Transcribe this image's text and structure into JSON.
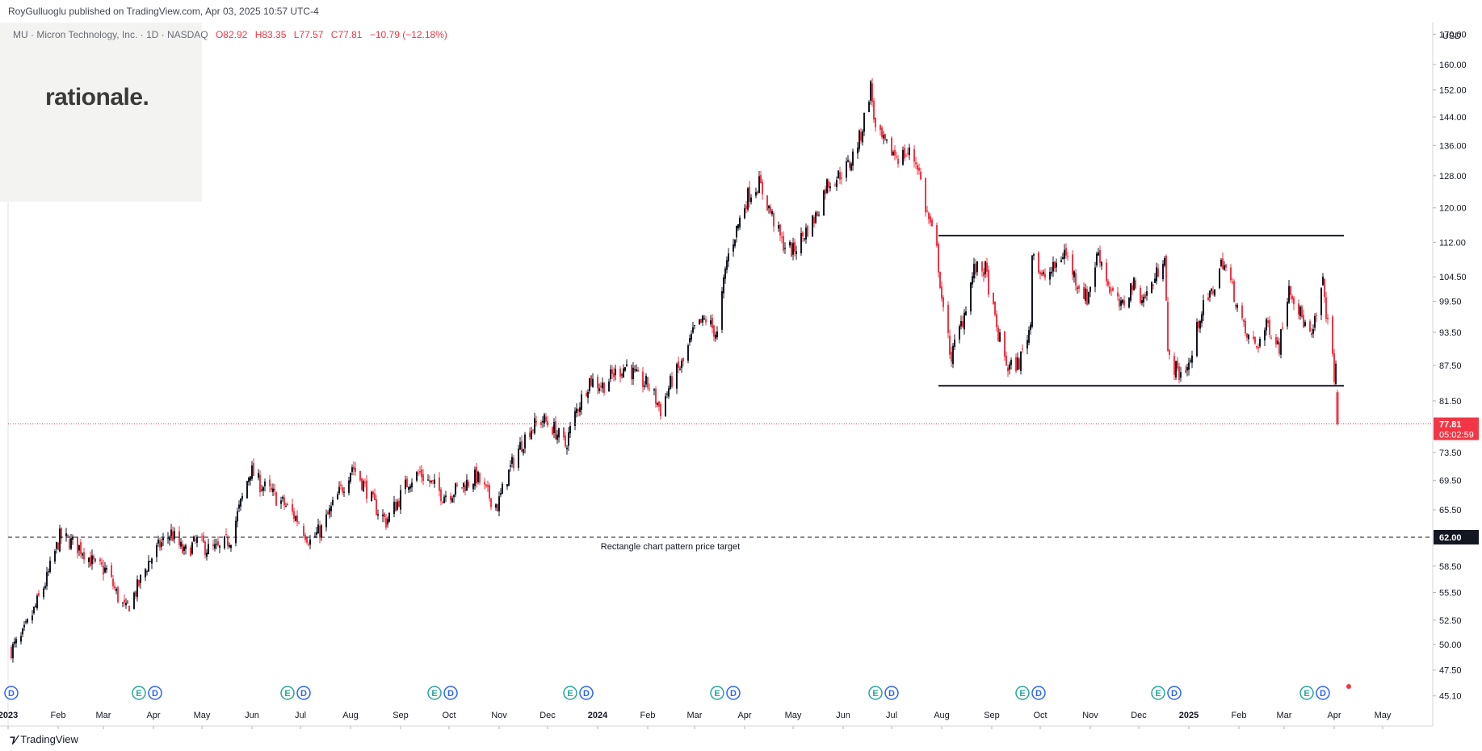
{
  "header": {
    "publisher": "RoyGulluoglu published on TradingView.com,",
    "date": "Apr 03, 2025 10:57 UTC-4"
  },
  "symbol": {
    "name": "MU · Micron Technology, Inc. · 1D · NASDAQ",
    "open": "O82.92",
    "high": "H83.35",
    "low": "L77.57",
    "close": "C77.81",
    "change": "−10.79 (−12.18%)"
  },
  "logo": {
    "text": "rationale."
  },
  "footer": {
    "brand": "TradingView"
  },
  "currency": "USD",
  "colors": {
    "up": "#131722",
    "down": "#f23645",
    "price_tag": "#f23645",
    "target_tag": "#131722",
    "badge_earnings": "#26a69a",
    "badge_dividend": "#2962ff",
    "badge_split": "#f23645"
  },
  "chart_data": {
    "type": "candlestick",
    "ylim": [
      44,
      174
    ],
    "y_scale": "log",
    "x_range": [
      "2023-01-01",
      "2025-05-31"
    ],
    "y_ticks": [
      "170.00",
      "160.00",
      "152.00",
      "144.00",
      "136.00",
      "128.00",
      "120.00",
      "112.00",
      "104.50",
      "99.50",
      "93.50",
      "87.50",
      "81.50",
      "73.50",
      "69.50",
      "65.50",
      "58.50",
      "55.50",
      "52.50",
      "50.00",
      "47.50",
      "45.10"
    ],
    "y_tick_values": [
      170,
      160,
      152,
      144,
      136,
      128,
      120,
      112,
      104.5,
      99.5,
      93.5,
      87.5,
      81.5,
      73.5,
      69.5,
      65.5,
      58.5,
      55.5,
      52.5,
      50,
      47.5,
      45.1
    ],
    "x_ticks": [
      {
        "label": "2023",
        "date": "2023-01-01",
        "bold": true
      },
      {
        "label": "Feb",
        "date": "2023-02-01"
      },
      {
        "label": "Mar",
        "date": "2023-03-01"
      },
      {
        "label": "Apr",
        "date": "2023-04-01"
      },
      {
        "label": "May",
        "date": "2023-05-01"
      },
      {
        "label": "Jun",
        "date": "2023-06-01"
      },
      {
        "label": "Jul",
        "date": "2023-07-01"
      },
      {
        "label": "Aug",
        "date": "2023-08-01"
      },
      {
        "label": "Sep",
        "date": "2023-09-01"
      },
      {
        "label": "Oct",
        "date": "2023-10-01"
      },
      {
        "label": "Nov",
        "date": "2023-11-01"
      },
      {
        "label": "Dec",
        "date": "2023-12-01"
      },
      {
        "label": "2024",
        "date": "2024-01-01",
        "bold": true
      },
      {
        "label": "Feb",
        "date": "2024-02-01"
      },
      {
        "label": "Mar",
        "date": "2024-03-01"
      },
      {
        "label": "Apr",
        "date": "2024-04-01"
      },
      {
        "label": "May",
        "date": "2024-05-01"
      },
      {
        "label": "Jun",
        "date": "2024-06-01"
      },
      {
        "label": "Jul",
        "date": "2024-07-01"
      },
      {
        "label": "Aug",
        "date": "2024-08-01"
      },
      {
        "label": "Sep",
        "date": "2024-09-01"
      },
      {
        "label": "Oct",
        "date": "2024-10-01"
      },
      {
        "label": "Nov",
        "date": "2024-11-01"
      },
      {
        "label": "Dec",
        "date": "2024-12-01"
      },
      {
        "label": "2025",
        "date": "2025-01-01",
        "bold": true
      },
      {
        "label": "Feb",
        "date": "2025-02-01"
      },
      {
        "label": "Mar",
        "date": "2025-03-01"
      },
      {
        "label": "Apr",
        "date": "2025-04-01"
      },
      {
        "label": "May",
        "date": "2025-05-01"
      }
    ],
    "close_path": [
      [
        "2023-01-03",
        49.5
      ],
      [
        "2023-01-09",
        50.5
      ],
      [
        "2023-01-17",
        53.5
      ],
      [
        "2023-01-25",
        57
      ],
      [
        "2023-02-02",
        62
      ],
      [
        "2023-02-08",
        61.5
      ],
      [
        "2023-02-16",
        60.5
      ],
      [
        "2023-02-24",
        58.5
      ],
      [
        "2023-03-03",
        58
      ],
      [
        "2023-03-10",
        55
      ],
      [
        "2023-03-15",
        53.5
      ],
      [
        "2023-03-22",
        56
      ],
      [
        "2023-03-29",
        59
      ],
      [
        "2023-04-05",
        61
      ],
      [
        "2023-04-12",
        62.5
      ],
      [
        "2023-04-20",
        60
      ],
      [
        "2023-04-28",
        61.5
      ],
      [
        "2023-05-05",
        60.5
      ],
      [
        "2023-05-12",
        60.5
      ],
      [
        "2023-05-19",
        62
      ],
      [
        "2023-05-26",
        67
      ],
      [
        "2023-05-31",
        71
      ],
      [
        "2023-06-06",
        69
      ],
      [
        "2023-06-14",
        67.5
      ],
      [
        "2023-06-22",
        66
      ],
      [
        "2023-06-30",
        64
      ],
      [
        "2023-07-07",
        61.5
      ],
      [
        "2023-07-14",
        63
      ],
      [
        "2023-07-21",
        66
      ],
      [
        "2023-07-28",
        69
      ],
      [
        "2023-08-02",
        71.5
      ],
      [
        "2023-08-09",
        69
      ],
      [
        "2023-08-16",
        66
      ],
      [
        "2023-08-23",
        64
      ],
      [
        "2023-08-30",
        66.5
      ],
      [
        "2023-09-06",
        69.5
      ],
      [
        "2023-09-13",
        70.5
      ],
      [
        "2023-09-20",
        69
      ],
      [
        "2023-09-27",
        67.5
      ],
      [
        "2023-10-04",
        68
      ],
      [
        "2023-10-11",
        69
      ],
      [
        "2023-10-18",
        70
      ],
      [
        "2023-10-25",
        67.5
      ],
      [
        "2023-10-31",
        66
      ],
      [
        "2023-11-06",
        70
      ],
      [
        "2023-11-13",
        74
      ],
      [
        "2023-11-20",
        77
      ],
      [
        "2023-11-28",
        78.5
      ],
      [
        "2023-12-05",
        77
      ],
      [
        "2023-12-12",
        74.5
      ],
      [
        "2023-12-19",
        80
      ],
      [
        "2023-12-27",
        85
      ],
      [
        "2024-01-04",
        84
      ],
      [
        "2024-01-11",
        86
      ],
      [
        "2024-01-19",
        87.5
      ],
      [
        "2024-01-26",
        85
      ],
      [
        "2024-02-02",
        84
      ],
      [
        "2024-02-09",
        80
      ],
      [
        "2024-02-16",
        85
      ],
      [
        "2024-02-23",
        88
      ],
      [
        "2024-03-01",
        94
      ],
      [
        "2024-03-08",
        96
      ],
      [
        "2024-03-15",
        93
      ],
      [
        "2024-03-21",
        108
      ],
      [
        "2024-03-27",
        115
      ],
      [
        "2024-04-03",
        123
      ],
      [
        "2024-04-10",
        126
      ],
      [
        "2024-04-17",
        119
      ],
      [
        "2024-04-24",
        112
      ],
      [
        "2024-05-01",
        110
      ],
      [
        "2024-05-08",
        114
      ],
      [
        "2024-05-15",
        118
      ],
      [
        "2024-05-22",
        126
      ],
      [
        "2024-05-29",
        128
      ],
      [
        "2024-06-05",
        131
      ],
      [
        "2024-06-12",
        139
      ],
      [
        "2024-06-18",
        153
      ],
      [
        "2024-06-21",
        140
      ],
      [
        "2024-06-27",
        136
      ],
      [
        "2024-07-05",
        133
      ],
      [
        "2024-07-12",
        134
      ],
      [
        "2024-07-17",
        131
      ],
      [
        "2024-07-22",
        120
      ],
      [
        "2024-07-29",
        110
      ],
      [
        "2024-08-02",
        97
      ],
      [
        "2024-08-07",
        89
      ],
      [
        "2024-08-14",
        96
      ],
      [
        "2024-08-21",
        106
      ],
      [
        "2024-08-28",
        106
      ],
      [
        "2024-09-04",
        94
      ],
      [
        "2024-09-11",
        87
      ],
      [
        "2024-09-18",
        88
      ],
      [
        "2024-09-25",
        95
      ],
      [
        "2024-09-26",
        111
      ],
      [
        "2024-10-02",
        104
      ],
      [
        "2024-10-09",
        106
      ],
      [
        "2024-10-16",
        110
      ],
      [
        "2024-10-23",
        104
      ],
      [
        "2024-10-30",
        100
      ],
      [
        "2024-11-06",
        110
      ],
      [
        "2024-11-13",
        102
      ],
      [
        "2024-11-20",
        98
      ],
      [
        "2024-11-27",
        103
      ],
      [
        "2024-12-04",
        100
      ],
      [
        "2024-12-11",
        104
      ],
      [
        "2024-12-17",
        110
      ],
      [
        "2024-12-19",
        89
      ],
      [
        "2024-12-26",
        86
      ],
      [
        "2025-01-02",
        88
      ],
      [
        "2025-01-08",
        97
      ],
      [
        "2025-01-15",
        101
      ],
      [
        "2025-01-22",
        108
      ],
      [
        "2025-01-29",
        101
      ],
      [
        "2025-02-05",
        93
      ],
      [
        "2025-02-12",
        91
      ],
      [
        "2025-02-19",
        95
      ],
      [
        "2025-02-26",
        91
      ],
      [
        "2025-03-04",
        103
      ],
      [
        "2025-03-11",
        97
      ],
      [
        "2025-03-18",
        92
      ],
      [
        "2025-03-25",
        103
      ],
      [
        "2025-03-28",
        95
      ],
      [
        "2025-04-01",
        86
      ],
      [
        "2025-04-02",
        88
      ]
    ],
    "last_candle": {
      "date": "2025-04-03",
      "open": 82.92,
      "high": 83.35,
      "low": 77.57,
      "close": 77.81
    },
    "rectangle_pattern": {
      "start": "2024-07-30",
      "end": "2025-04-07",
      "top": 113.5,
      "bottom": 84
    },
    "target_line": {
      "value": 62.0,
      "label": "Rectangle chart pattern price target",
      "label_date": "2024-02-15"
    },
    "price_line": {
      "value": 77.81
    },
    "price_tag": {
      "price": "77.81",
      "countdown": "05:02:59"
    },
    "target_tag": {
      "price": "62.00"
    },
    "events": [
      {
        "date": "2023-01-03",
        "types": [
          "D"
        ]
      },
      {
        "date": "2023-03-28",
        "types": [
          "E",
          "D"
        ]
      },
      {
        "date": "2023-06-28",
        "types": [
          "E",
          "D"
        ]
      },
      {
        "date": "2023-09-27",
        "types": [
          "E",
          "D"
        ]
      },
      {
        "date": "2023-12-20",
        "types": [
          "E",
          "D"
        ]
      },
      {
        "date": "2024-03-20",
        "types": [
          "E",
          "D"
        ]
      },
      {
        "date": "2024-06-26",
        "types": [
          "E",
          "D"
        ]
      },
      {
        "date": "2024-09-25",
        "types": [
          "E",
          "D"
        ]
      },
      {
        "date": "2024-12-18",
        "types": [
          "E",
          "D"
        ]
      },
      {
        "date": "2025-03-20",
        "types": [
          "E",
          "D"
        ]
      }
    ]
  }
}
